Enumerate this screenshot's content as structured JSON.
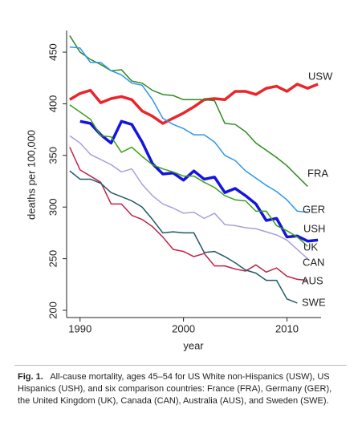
{
  "chart_data": {
    "type": "line",
    "ylabel": "deaths per 100,000",
    "xlabel": "year",
    "x": [
      1989,
      1990,
      1991,
      1992,
      1993,
      1994,
      1995,
      1996,
      1997,
      1998,
      1999,
      2000,
      2001,
      2002,
      2003,
      2004,
      2005,
      2006,
      2007,
      2008,
      2009,
      2010,
      2011,
      2012,
      2013
    ],
    "xlim": [
      1988.7,
      2013.3
    ],
    "xticks": [
      1990,
      2000,
      2010
    ],
    "ylim": [
      193,
      471
    ],
    "yticks": [
      200,
      250,
      300,
      350,
      400,
      450
    ],
    "series": [
      {
        "name": "USW",
        "color": "#e8262b",
        "width": 3.5,
        "values": [
          404,
          410,
          413,
          401,
          405,
          407,
          404,
          393,
          388,
          381,
          386,
          391,
          397,
          404,
          405,
          404,
          412,
          412,
          409,
          415,
          417,
          412,
          419,
          415,
          419
        ]
      },
      {
        "name": "FRA",
        "color": "#2e8b1f",
        "width": 1.5,
        "values": [
          466,
          450,
          443,
          438,
          432,
          433,
          422,
          420,
          413,
          409,
          408,
          404,
          404,
          404,
          403,
          381,
          380,
          373,
          362,
          355,
          348,
          340,
          330,
          320,
          null
        ]
      },
      {
        "name": "GER",
        "color": "#2d96e8",
        "width": 1.5,
        "values": [
          455,
          454,
          440,
          440,
          432,
          428,
          420,
          418,
          404,
          386,
          380,
          376,
          370,
          370,
          363,
          350,
          345,
          335,
          328,
          321,
          315,
          307,
          296,
          295,
          null
        ]
      },
      {
        "name": "USH",
        "color": "#1414e0",
        "width": 3.5,
        "values": [
          null,
          383,
          381,
          370,
          362,
          383,
          380,
          363,
          342,
          332,
          333,
          326,
          335,
          327,
          329,
          314,
          318,
          311,
          303,
          287,
          289,
          271,
          272,
          267,
          268
        ]
      },
      {
        "name": "UK",
        "color": "#3aa018",
        "width": 1.5,
        "values": [
          399,
          392,
          385,
          369,
          368,
          353,
          358,
          349,
          341,
          337,
          334,
          330,
          330,
          324,
          319,
          311,
          307,
          306,
          296,
          296,
          282,
          277,
          271,
          262,
          null
        ]
      },
      {
        "name": "CAN",
        "color": "#a8a0d8",
        "width": 1.5,
        "values": [
          369,
          362,
          351,
          346,
          341,
          334,
          337,
          322,
          311,
          303,
          299,
          294,
          295,
          289,
          294,
          283,
          282,
          280,
          279,
          276,
          273,
          268,
          259,
          250,
          null
        ]
      },
      {
        "name": "AUS",
        "color": "#c0244a",
        "width": 1.5,
        "values": [
          358,
          336,
          330,
          324,
          303,
          303,
          292,
          288,
          281,
          271,
          259,
          257,
          252,
          255,
          243,
          243,
          240,
          238,
          244,
          237,
          241,
          233,
          230,
          229,
          null
        ]
      },
      {
        "name": "SWE",
        "color": "#1f5a6a",
        "width": 1.5,
        "values": [
          335,
          327,
          327,
          323,
          314,
          310,
          306,
          300,
          288,
          275,
          276,
          275,
          275,
          256,
          257,
          252,
          246,
          239,
          236,
          229,
          229,
          211,
          207,
          null,
          null
        ]
      }
    ]
  },
  "caption": {
    "label": "Fig. 1.",
    "text": "All-cause mortality, ages 45–54 for US White non-Hispanics (USW), US Hispanics (USH), and six comparison countries: France (FRA), Germany (GER), the United Kingdom (UK), Canada (CAN), Australia (AUS), and Sweden (SWE)."
  }
}
